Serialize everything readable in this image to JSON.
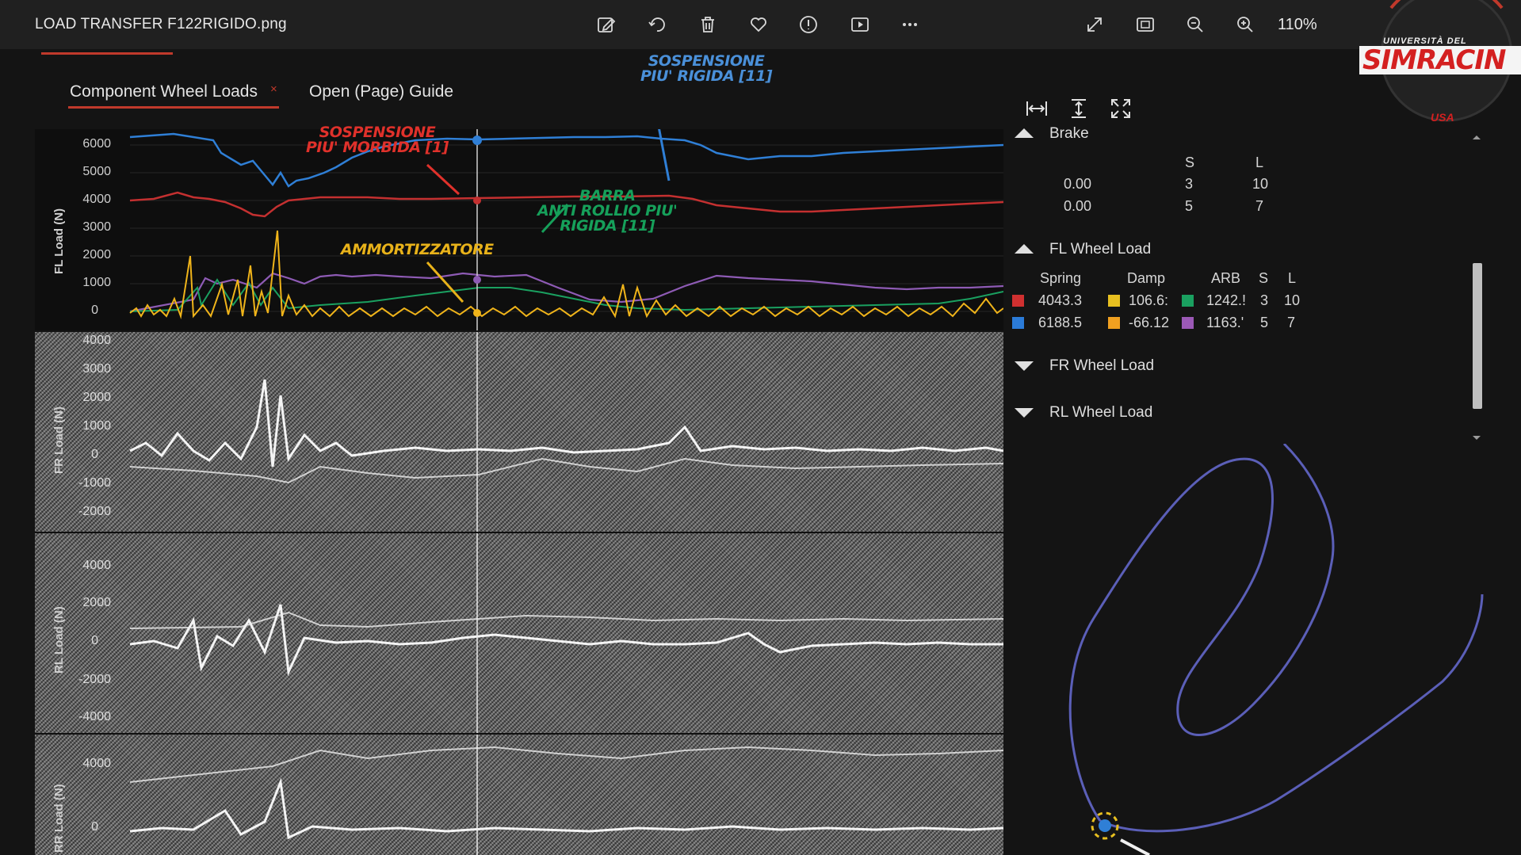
{
  "viewer": {
    "file_title": "LOAD TRANSFER F122RIGIDO.png",
    "zoom": "110%",
    "toolbar_icons": [
      "edit-icon",
      "rotate-icon",
      "delete-icon",
      "favorite-icon",
      "info-icon",
      "slideshow-icon",
      "more-icon"
    ],
    "right_icons": [
      "expand-icon",
      "fit-screen-icon",
      "zoom-out-icon",
      "zoom-in-icon"
    ]
  },
  "logo": {
    "line1": "UNIVERSITÀ DEL",
    "line2": "SIMRACIN",
    "line3": "USA"
  },
  "tabs": [
    {
      "label": "Component Wheel Loads",
      "active": true,
      "close": "×"
    },
    {
      "label": "Open (Page) Guide",
      "active": false
    }
  ],
  "view_buttons": [
    "fit-width-icon",
    "fit-height-icon",
    "fullscreen-icon"
  ],
  "charts": {
    "fl": {
      "ylabel": "FL Load (N)",
      "ticks": [
        "6000",
        "5000",
        "4000",
        "3000",
        "2000",
        "1000",
        "0"
      ]
    },
    "fr": {
      "ylabel": "FR Load (N)",
      "ticks": [
        "4000",
        "3000",
        "2000",
        "1000",
        "0",
        "-1000",
        "-2000"
      ]
    },
    "rl": {
      "ylabel": "RL Load (N)",
      "ticks": [
        "4000",
        "2000",
        "0",
        "-2000",
        "-4000"
      ]
    },
    "rr": {
      "ylabel": "RR Load (N)",
      "ticks": [
        "4000",
        "0"
      ]
    }
  },
  "annotations": {
    "stiffer": {
      "line1": "SOSPENSIONE",
      "line2": "PIU' RIGIDA [11]",
      "color": "#4a90d9"
    },
    "softer": {
      "line1": "SOSPENSIONE",
      "line2": "PIU' MORBIDA [1]",
      "color": "#e0312b"
    },
    "arb": {
      "line1": "BARRA",
      "line2": "ANTI ROLLIO PIU'",
      "line3": "RIGIDA [11]",
      "color": "#16a05a"
    },
    "damper": {
      "line1": "AMMORTIZZATORE",
      "color": "#e8b21a"
    }
  },
  "right_panel": {
    "brake": {
      "title": "Brake",
      "col_s": "S",
      "col_l": "L",
      "rows": [
        {
          "value": "0.00",
          "s": "3",
          "l": "10"
        },
        {
          "value": "0.00",
          "s": "5",
          "l": "7"
        }
      ]
    },
    "fl_wheel_load": {
      "title": "FL Wheel Load",
      "headers": {
        "spring": "Spring",
        "damp": "Damp",
        "arb": "ARB",
        "s": "S",
        "l": "L"
      },
      "rows": [
        {
          "spring": "4043.3",
          "damp": "106.6:",
          "arb": "1242.!",
          "s": "3",
          "l": "10",
          "spring_color": "#d03030",
          "damp_color": "#e8c020",
          "arb_color": "#1aa060"
        },
        {
          "spring": "6188.5",
          "damp": "-66.12",
          "arb": "1163.'",
          "s": "5",
          "l": "7",
          "spring_color": "#2b7bd8",
          "damp_color": "#f0a020",
          "arb_color": "#9b59b6"
        }
      ]
    },
    "fr_wheel_load": {
      "title": "FR Wheel Load"
    },
    "rl_wheel_load": {
      "title": "RL Wheel Load"
    }
  },
  "colors": {
    "accent": "#c0392b",
    "blue_series": "#2f7fd6",
    "red_series": "#c43030",
    "yellow_series": "#f0b41a",
    "purple_series": "#8e5bb5",
    "green_series": "#1aa060",
    "track": "#5b5fb8"
  }
}
